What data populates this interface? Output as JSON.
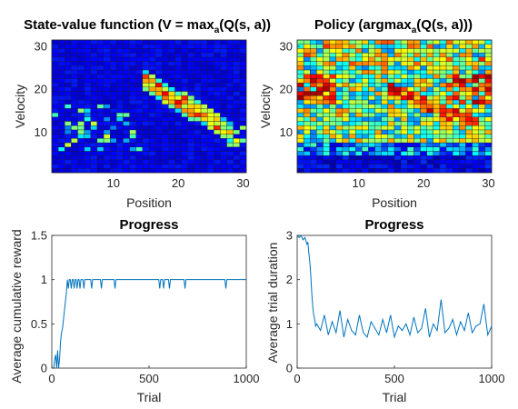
{
  "chart_data": [
    {
      "type": "heatmap",
      "title_parts": [
        "State-value function (V = max",
        "a",
        "(Q(s, a))"
      ],
      "xlabel": "Position",
      "ylabel": "Velocity",
      "xlim": [
        0.5,
        30.5
      ],
      "ylim": [
        0.5,
        31.5
      ],
      "xticks": [
        10,
        20,
        30
      ],
      "yticks": [
        10,
        20,
        30
      ],
      "colormap": "jet",
      "grid_size": [
        30,
        31
      ],
      "description": "mostly low values; a diagonal high-value band from (15,22) descending to (28,10), scattered medium cells near left around velocity 8-14"
    },
    {
      "type": "heatmap",
      "title_parts": [
        "Policy (argmax",
        "a",
        "(Q(s, a)))"
      ],
      "xlabel": "Position",
      "ylabel": "Velocity",
      "xlim": [
        0.5,
        30.5
      ],
      "ylim": [
        0.5,
        31.5
      ],
      "xticks": [
        10,
        20,
        30
      ],
      "yticks": [
        10,
        20,
        30
      ],
      "colormap": "jet",
      "grid_size": [
        30,
        31
      ],
      "description": "noisy mix; dark blue along bottom rows, red/orange patches near velocity 20 at left and right, diagonal yellow-red band from (15,20) to (28,12)"
    },
    {
      "type": "line",
      "title": "Progress",
      "xlabel": "Trial",
      "ylabel": "Average cumulative reward",
      "xlim": [
        0,
        1000
      ],
      "ylim": [
        0,
        1.5
      ],
      "xticks": [
        "0",
        "500",
        "1000"
      ],
      "yticks": [
        "0",
        "0.5",
        "1",
        "1.5"
      ],
      "color": "#0072BD",
      "series": [
        {
          "x": [
            0,
            10,
            15,
            20,
            25,
            30,
            35,
            40,
            45,
            50,
            55,
            60,
            65,
            70,
            75,
            80,
            85,
            90,
            95,
            100,
            105,
            110,
            115,
            120,
            125,
            130,
            135,
            140,
            145,
            150,
            160,
            165,
            170,
            200,
            205,
            210,
            250,
            255,
            260,
            320,
            325,
            330,
            550,
            555,
            560,
            570,
            575,
            580,
            600,
            605,
            610,
            680,
            685,
            690,
            890,
            895,
            900,
            1000
          ],
          "y": [
            0,
            0,
            0.1,
            0.15,
            0,
            0.2,
            0,
            0.1,
            0.3,
            0.4,
            0.45,
            0.55,
            0.65,
            0.75,
            0.85,
            1,
            0.9,
            1,
            1,
            0.9,
            1,
            1,
            0.9,
            1,
            1,
            0.9,
            1,
            1,
            0.9,
            1,
            1,
            0.9,
            1,
            1,
            0.9,
            1,
            1,
            0.9,
            1,
            1,
            0.9,
            1,
            1,
            0.9,
            1,
            1,
            0.9,
            1,
            1,
            0.9,
            1,
            1,
            0.9,
            1,
            1,
            0.9,
            1,
            1
          ]
        }
      ]
    },
    {
      "type": "line",
      "title": "Progress",
      "xlabel": "Trial",
      "ylabel": "Average trial duration",
      "xlim": [
        0,
        1000
      ],
      "ylim": [
        0,
        3
      ],
      "xticks": [
        "0",
        "500",
        "1000"
      ],
      "yticks": [
        "0",
        "1",
        "2",
        "3"
      ],
      "color": "#0072BD",
      "series": [
        {
          "x": [
            0,
            10,
            20,
            30,
            40,
            50,
            55,
            60,
            65,
            70,
            75,
            80,
            85,
            90,
            95,
            100,
            120,
            140,
            160,
            180,
            200,
            220,
            240,
            260,
            280,
            300,
            320,
            340,
            360,
            380,
            400,
            420,
            440,
            460,
            480,
            500,
            520,
            540,
            560,
            580,
            600,
            620,
            640,
            660,
            680,
            700,
            720,
            740,
            760,
            780,
            800,
            820,
            840,
            860,
            880,
            900,
            920,
            940,
            960,
            980,
            1000
          ],
          "y": [
            3,
            2.95,
            3,
            2.9,
            2.95,
            2.8,
            2.85,
            2.6,
            2.4,
            2.1,
            1.7,
            1.4,
            1.2,
            1.1,
            0.95,
            1.0,
            0.85,
            1.2,
            0.75,
            1.05,
            0.8,
            1.3,
            0.7,
            1.1,
            0.85,
            0.75,
            1.2,
            0.8,
            0.7,
            1.05,
            0.9,
            0.75,
            1.1,
            0.8,
            1.2,
            0.7,
            0.95,
            0.85,
            1.0,
            0.75,
            1.15,
            0.8,
            0.9,
            1.35,
            0.7,
            1.0,
            0.85,
            1.55,
            0.8,
            0.9,
            1.1,
            0.75,
            1.05,
            0.85,
            1.25,
            0.8,
            0.95,
            1.0,
            1.45,
            0.75,
            0.95
          ]
        }
      ]
    }
  ]
}
